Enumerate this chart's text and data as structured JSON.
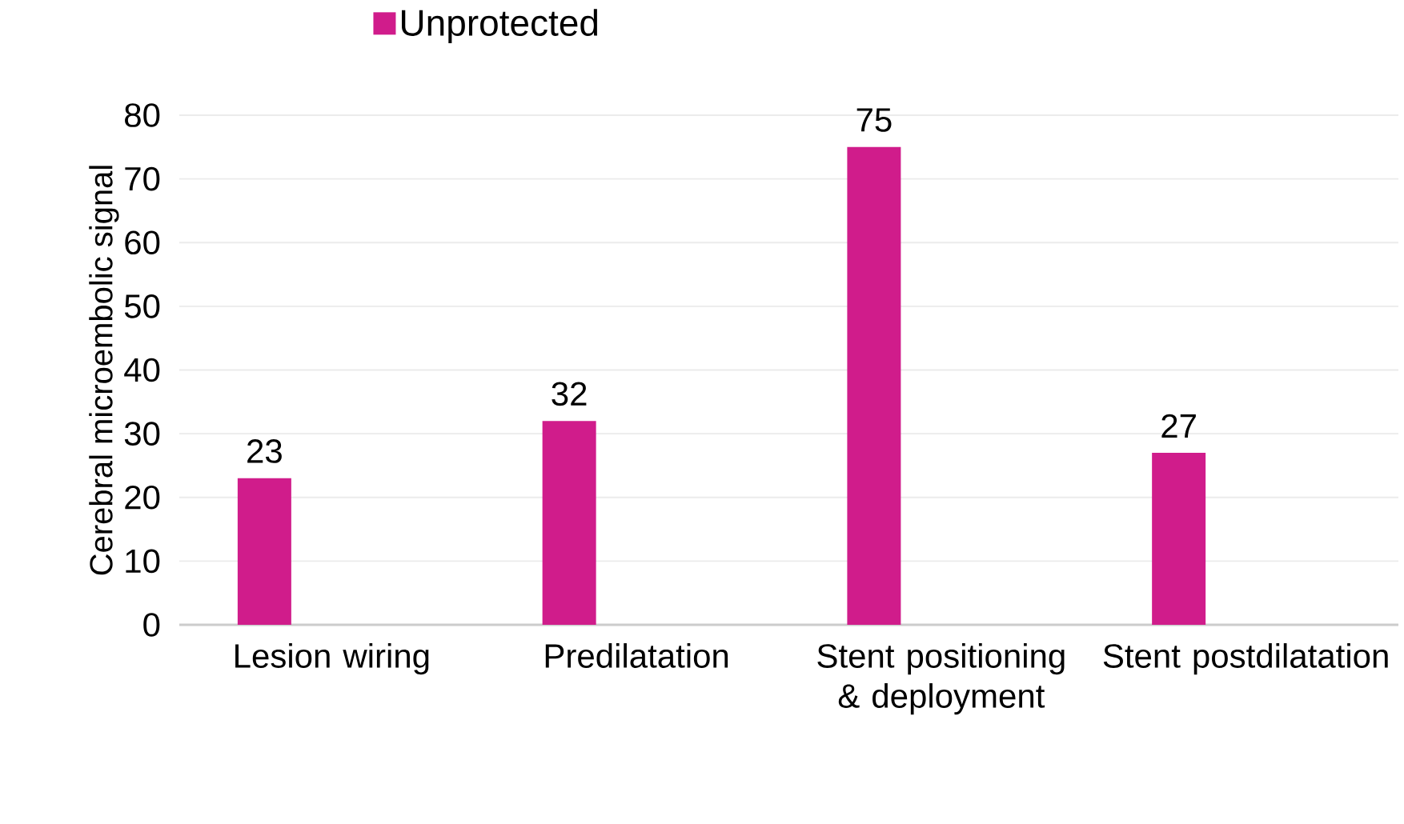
{
  "chart_data": {
    "type": "bar",
    "ylabel": "Cerebral microembolic signal",
    "categories": [
      "Lesion wiring",
      "Predilatation",
      "Stent positioning & deployment",
      "Stent postdilatation"
    ],
    "series": [
      {
        "name": "Unprotected",
        "color": "#d01c8b",
        "values": [
          23,
          32,
          75,
          27
        ]
      }
    ],
    "ylim": [
      0,
      80
    ],
    "yticks": [
      0,
      10,
      20,
      30,
      40,
      50,
      60,
      70,
      80
    ],
    "grid": "y",
    "legend": "top left",
    "data_labels": true
  }
}
